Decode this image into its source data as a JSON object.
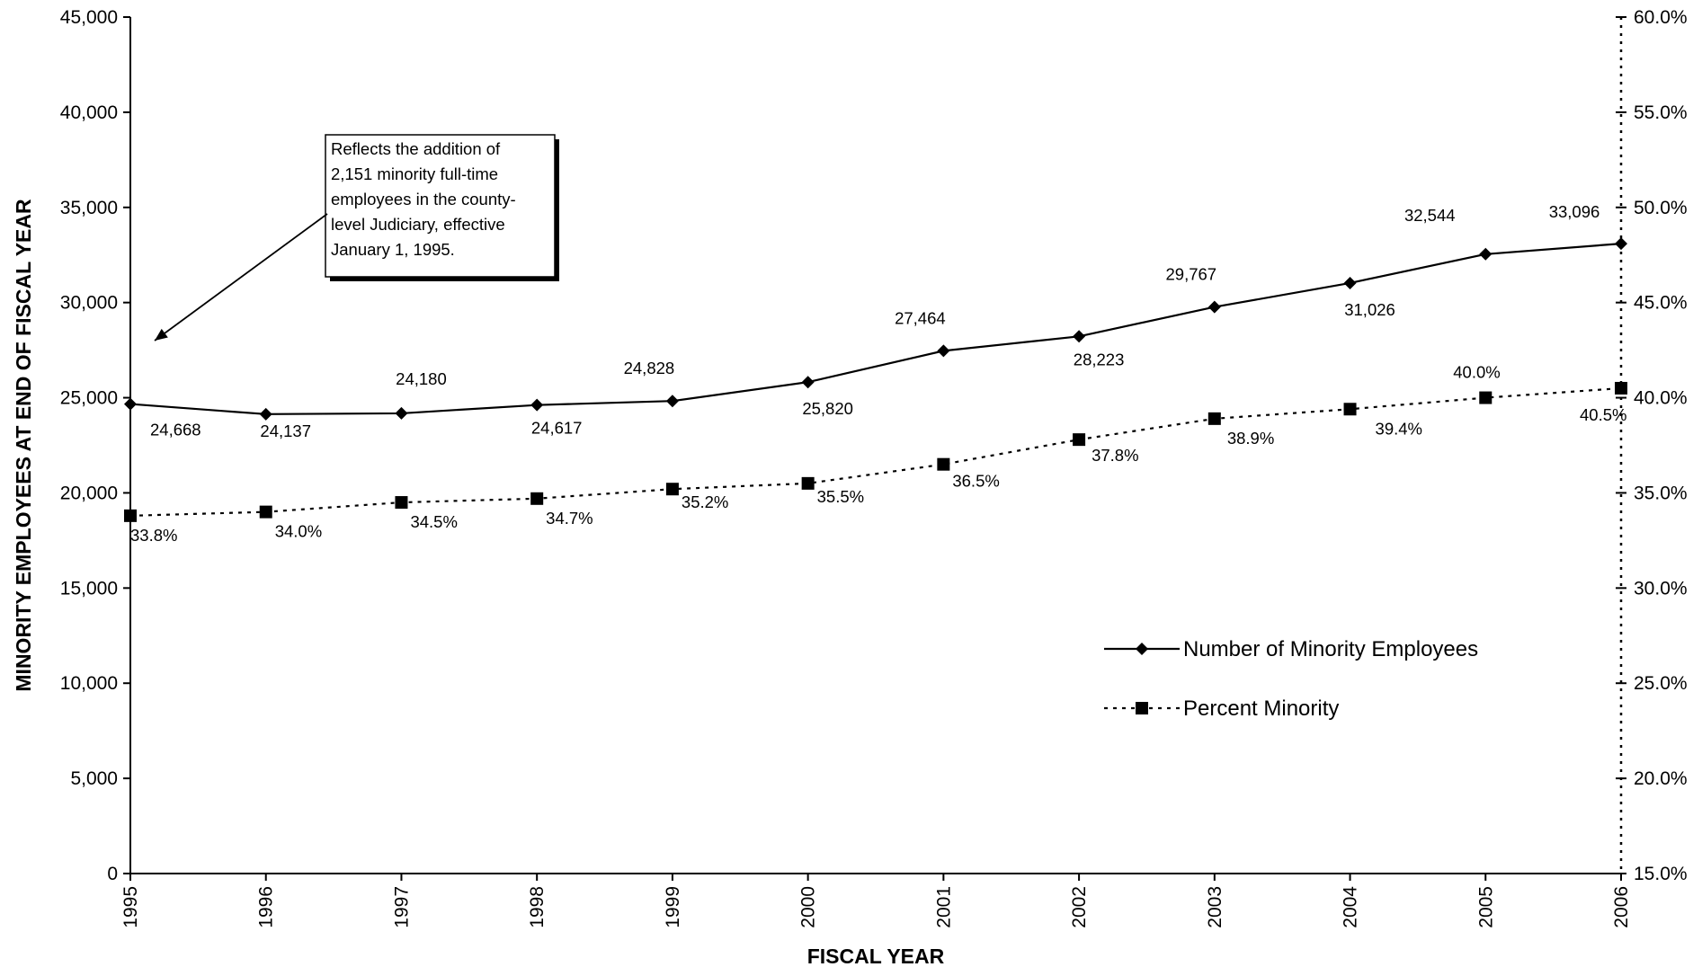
{
  "chart_data": {
    "type": "line",
    "title": "",
    "xlabel": "FISCAL YEAR",
    "ylabel": "MINORITY EMPLOYEES AT END OF FISCAL YEAR",
    "categories": [
      "1995",
      "1996",
      "1997",
      "1998",
      "1999",
      "2000",
      "2001",
      "2002",
      "2003",
      "2004",
      "2005",
      "2006"
    ],
    "y_left": {
      "range": [
        0,
        45000
      ],
      "ticks": [
        0,
        5000,
        10000,
        15000,
        20000,
        25000,
        30000,
        35000,
        40000,
        45000
      ],
      "tick_labels": [
        "0",
        "5,000",
        "10,000",
        "15,000",
        "20,000",
        "25,000",
        "30,000",
        "35,000",
        "40,000",
        "45,000"
      ]
    },
    "y_right": {
      "range": [
        15,
        60
      ],
      "ticks": [
        15,
        20,
        25,
        30,
        35,
        40,
        45,
        50,
        55,
        60
      ],
      "tick_labels": [
        "15.0%",
        "20.0%",
        "25.0%",
        "30.0%",
        "35.0%",
        "40.0%",
        "45.0%",
        "50.0%",
        "55.0%",
        "60.0%"
      ]
    },
    "series": [
      {
        "name": "Number of Minority Employees",
        "axis": "left",
        "style": "solid",
        "marker": "diamond",
        "values": [
          24668,
          24137,
          24180,
          24617,
          24828,
          25820,
          27464,
          28223,
          29767,
          31026,
          32544,
          33096
        ],
        "labels": [
          "24,668",
          "24,137",
          "24,180",
          "24,617",
          "24,828",
          "25,820",
          "27,464",
          "28,223",
          "29,767",
          "31,026",
          "32,544",
          "33,096"
        ]
      },
      {
        "name": "Percent Minority",
        "axis": "right",
        "style": "dotted",
        "marker": "square",
        "values": [
          33.8,
          34.0,
          34.5,
          34.7,
          35.2,
          35.5,
          36.5,
          37.8,
          38.9,
          39.4,
          40.0,
          40.5
        ],
        "labels": [
          "33.8%",
          "34.0%",
          "34.5%",
          "34.7%",
          "35.2%",
          "35.5%",
          "36.5%",
          "37.8%",
          "38.9%",
          "39.4%",
          "40.0%",
          "40.5%"
        ]
      }
    ],
    "annotation": {
      "lines": [
        "Reflects the addition of",
        "2,151 minority full-time",
        "employees in the county-",
        "level Judiciary, effective",
        "January 1, 1995."
      ]
    },
    "grid": false,
    "legend_position": "bottom-right"
  }
}
